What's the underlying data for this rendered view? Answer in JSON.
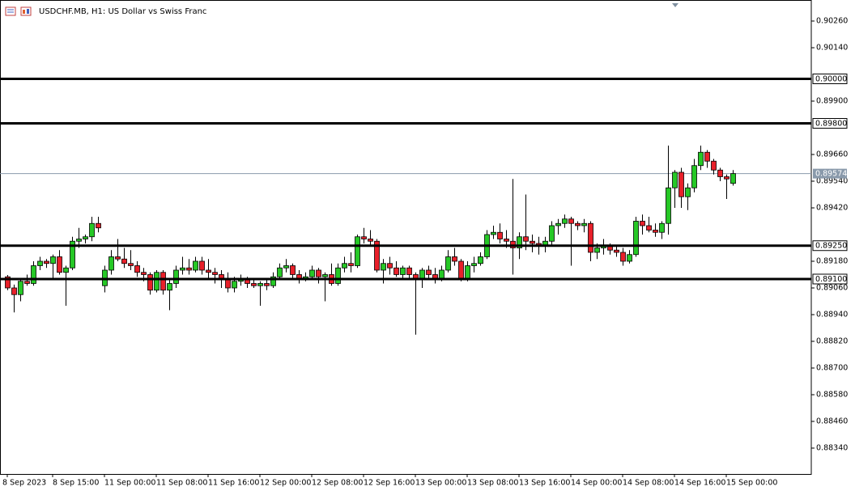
{
  "chart_data": {
    "type": "candlestick",
    "title": "USDCHF.MB, H1:  US Dollar vs Swiss Franc",
    "categories": [
      "8 Sep 2023",
      null,
      null,
      null,
      null,
      null,
      null,
      "8 Sep 15:00",
      null,
      null,
      null,
      null,
      null,
      null,
      null,
      "11 Sep 00:00",
      null,
      null,
      null,
      null,
      null,
      null,
      null,
      "11 Sep 08:00",
      null,
      null,
      null,
      null,
      null,
      null,
      null,
      "11 Sep 16:00",
      null,
      null,
      null,
      null,
      null,
      null,
      null,
      "12 Sep 00:00",
      null,
      null,
      null,
      null,
      null,
      null,
      null,
      "12 Sep 08:00",
      null,
      null,
      null,
      null,
      null,
      null,
      null,
      "12 Sep 16:00",
      null,
      null,
      null,
      null,
      null,
      null,
      null,
      "13 Sep 00:00",
      null,
      null,
      null,
      null,
      null,
      null,
      null,
      "13 Sep 08:00",
      null,
      null,
      null,
      null,
      null,
      null,
      null,
      "13 Sep 16:00",
      null,
      null,
      null,
      null,
      null,
      null,
      null,
      "14 Sep 00:00",
      null,
      null,
      null,
      null,
      null,
      null,
      null,
      "14 Sep 08:00",
      null,
      null,
      null,
      null,
      null,
      null,
      null,
      "14 Sep 16:00",
      null,
      null,
      null,
      null,
      null,
      null,
      null,
      "15 Sep 00:00",
      null
    ],
    "open": [
      0.8911,
      0.8906,
      0.8903,
      0.8909,
      0.8908,
      0.8916,
      0.8918,
      0.8917,
      0.892,
      0.8913,
      0.8915,
      0.8927,
      0.8928,
      0.8929,
      0.8935,
      0.8907,
      0.8914,
      0.892,
      0.8919,
      0.8917,
      0.8916,
      0.8913,
      0.8912,
      0.8905,
      0.8913,
      0.8905,
      0.8908,
      0.8914,
      0.8915,
      0.8914,
      0.8918,
      0.8914,
      0.8913,
      0.8912,
      0.891,
      0.8906,
      0.8909,
      0.891,
      0.8908,
      0.8907,
      0.8908,
      0.8907,
      0.8911,
      0.8915,
      0.8916,
      0.8912,
      0.891,
      0.8911,
      0.8914,
      0.8911,
      0.8912,
      0.8908,
      0.8915,
      0.8917,
      0.8916,
      0.8929,
      0.8928,
      0.8927,
      0.8914,
      0.8917,
      0.8915,
      0.8912,
      0.8915,
      0.8912,
      0.891,
      0.8914,
      0.8912,
      0.891,
      0.8914,
      0.892,
      0.8918,
      0.891,
      0.8916,
      0.8917,
      0.892,
      0.893,
      0.8931,
      0.8928,
      0.8927,
      0.8924,
      0.8929,
      0.8927,
      0.8926,
      0.8925,
      0.8927,
      0.8934,
      0.8935,
      0.8937,
      0.8935,
      0.8934,
      0.8935,
      0.8922,
      0.8924,
      0.8925,
      0.8923,
      0.8922,
      0.8918,
      0.8921,
      0.8936,
      0.8934,
      0.8932,
      0.8931,
      0.8935,
      0.8951,
      0.8958,
      0.8947,
      0.8951,
      0.8961,
      0.8967,
      0.8963,
      0.8959,
      0.8956,
      0.8953
    ],
    "high": [
      0.89118,
      0.89075,
      0.891,
      0.8912,
      0.8918,
      0.892,
      0.8919,
      0.8921,
      0.8923,
      0.8916,
      0.8929,
      0.8933,
      0.893,
      0.8938,
      0.8938,
      0.8916,
      0.8923,
      0.8928,
      0.8924,
      0.8923,
      0.8918,
      0.8915,
      0.8913,
      0.8914,
      0.8914,
      0.891,
      0.8916,
      0.892,
      0.8919,
      0.892,
      0.892,
      0.8919,
      0.8915,
      0.8914,
      0.8913,
      0.8911,
      0.8912,
      0.8911,
      0.891,
      0.8909,
      0.891,
      0.8913,
      0.8917,
      0.8919,
      0.8917,
      0.8914,
      0.8913,
      0.8916,
      0.8915,
      0.8913,
      0.8917,
      0.8917,
      0.892,
      0.8922,
      0.893,
      0.8933,
      0.8932,
      0.8928,
      0.8919,
      0.892,
      0.8918,
      0.8916,
      0.8916,
      0.8913,
      0.8915,
      0.8916,
      0.8915,
      0.8916,
      0.8923,
      0.8924,
      0.8919,
      0.8918,
      0.892,
      0.8922,
      0.8932,
      0.8934,
      0.8935,
      0.8932,
      0.8955,
      0.8931,
      0.8948,
      0.893,
      0.8929,
      0.8929,
      0.8936,
      0.8937,
      0.8939,
      0.8938,
      0.8936,
      0.8937,
      0.8936,
      0.8926,
      0.8928,
      0.8926,
      0.8925,
      0.8924,
      0.8923,
      0.8938,
      0.8939,
      0.8938,
      0.8935,
      0.8936,
      0.897,
      0.8959,
      0.896,
      0.8953,
      0.8964,
      0.897,
      0.8968,
      0.8964,
      0.896,
      0.8957,
      0.8959
    ],
    "low": [
      0.8905,
      0.8895,
      0.89,
      0.8907,
      0.8907,
      0.8914,
      0.8915,
      0.891,
      0.8912,
      0.8898,
      0.8914,
      0.8924,
      0.8926,
      0.8927,
      0.8931,
      0.8904,
      0.8912,
      0.8918,
      0.8915,
      0.8914,
      0.8911,
      0.8909,
      0.8903,
      0.8904,
      0.8903,
      0.8896,
      0.8906,
      0.8912,
      0.8912,
      0.8913,
      0.8912,
      0.891,
      0.8908,
      0.8906,
      0.8904,
      0.8904,
      0.8907,
      0.8906,
      0.8906,
      0.8898,
      0.8905,
      0.8906,
      0.891,
      0.8913,
      0.891,
      0.8908,
      0.8909,
      0.891,
      0.8908,
      0.89,
      0.8907,
      0.8907,
      0.8913,
      0.8913,
      0.8915,
      0.8926,
      0.8925,
      0.8913,
      0.8908,
      0.8912,
      0.8911,
      0.891,
      0.891,
      0.8885,
      0.8906,
      0.891,
      0.8908,
      0.8909,
      0.8913,
      0.8916,
      0.8909,
      0.8909,
      0.8913,
      0.8916,
      0.8919,
      0.8928,
      0.8926,
      0.8924,
      0.8912,
      0.8919,
      0.8923,
      0.8922,
      0.8921,
      0.8922,
      0.8925,
      0.893,
      0.8933,
      0.8916,
      0.8932,
      0.8931,
      0.8918,
      0.8919,
      0.8921,
      0.8921,
      0.892,
      0.8916,
      0.8917,
      0.892,
      0.893,
      0.8931,
      0.8929,
      0.8928,
      0.893,
      0.8942,
      0.8942,
      0.8941,
      0.8949,
      0.8959,
      0.896,
      0.8957,
      0.8954,
      0.8946,
      0.8952
    ],
    "close": [
      0.8906,
      0.8903,
      0.8909,
      0.8908,
      0.8916,
      0.8918,
      0.8917,
      0.892,
      0.8913,
      0.8915,
      0.8927,
      0.8928,
      0.8929,
      0.8935,
      0.8933,
      0.8914,
      0.892,
      0.8919,
      0.8917,
      0.8916,
      0.8913,
      0.8912,
      0.8905,
      0.8913,
      0.8905,
      0.8908,
      0.8914,
      0.8915,
      0.8914,
      0.8918,
      0.8914,
      0.8913,
      0.8912,
      0.891,
      0.8906,
      0.8909,
      0.891,
      0.8908,
      0.8907,
      0.8908,
      0.8907,
      0.8911,
      0.8915,
      0.8916,
      0.8912,
      0.891,
      0.8911,
      0.8914,
      0.8911,
      0.8912,
      0.8908,
      0.8915,
      0.8917,
      0.8916,
      0.8929,
      0.8928,
      0.8927,
      0.8914,
      0.8917,
      0.8915,
      0.8912,
      0.8915,
      0.8912,
      0.891,
      0.8914,
      0.8912,
      0.891,
      0.8914,
      0.892,
      0.8918,
      0.891,
      0.8916,
      0.8917,
      0.892,
      0.893,
      0.8931,
      0.8928,
      0.8927,
      0.8924,
      0.8929,
      0.8927,
      0.8926,
      0.8925,
      0.8927,
      0.8934,
      0.8935,
      0.8937,
      0.8935,
      0.8934,
      0.8935,
      0.8922,
      0.8924,
      0.8925,
      0.8923,
      0.8922,
      0.8918,
      0.8921,
      0.8936,
      0.8934,
      0.8932,
      0.8931,
      0.8935,
      0.8951,
      0.8958,
      0.8947,
      0.8951,
      0.8961,
      0.8967,
      0.8963,
      0.8959,
      0.8956,
      0.8955,
      0.89574
    ],
    "up_color": "#26c826",
    "down_color": "#e8202a",
    "ylim": [
      0.882236,
      0.903545
    ],
    "yticks": [
      {
        "value": 0.9026,
        "label": "0.90260"
      },
      {
        "value": 0.9014,
        "label": "0.90140"
      },
      {
        "value": 0.899,
        "label": "0.89900"
      },
      {
        "value": 0.8966,
        "label": "0.89660"
      },
      {
        "value": 0.8954,
        "label": "0.89540"
      },
      {
        "value": 0.8942,
        "label": "0.89420"
      },
      {
        "value": 0.8918,
        "label": "0.89180"
      },
      {
        "value": 0.8906,
        "label": "0.89060"
      },
      {
        "value": 0.8894,
        "label": "0.88940"
      },
      {
        "value": 0.8882,
        "label": "0.88820"
      },
      {
        "value": 0.887,
        "label": "0.88700"
      },
      {
        "value": 0.8858,
        "label": "0.88580"
      },
      {
        "value": 0.8846,
        "label": "0.88460"
      },
      {
        "value": 0.8834,
        "label": "0.88340"
      }
    ],
    "hlines": [
      {
        "value": 0.9,
        "label": "0.90000"
      },
      {
        "value": 0.898,
        "label": "0.89800"
      },
      {
        "value": 0.8925,
        "label": "0.89250"
      },
      {
        "value": 0.891,
        "label": "0.89100"
      }
    ],
    "current_price": 0.89574,
    "grid": false
  }
}
